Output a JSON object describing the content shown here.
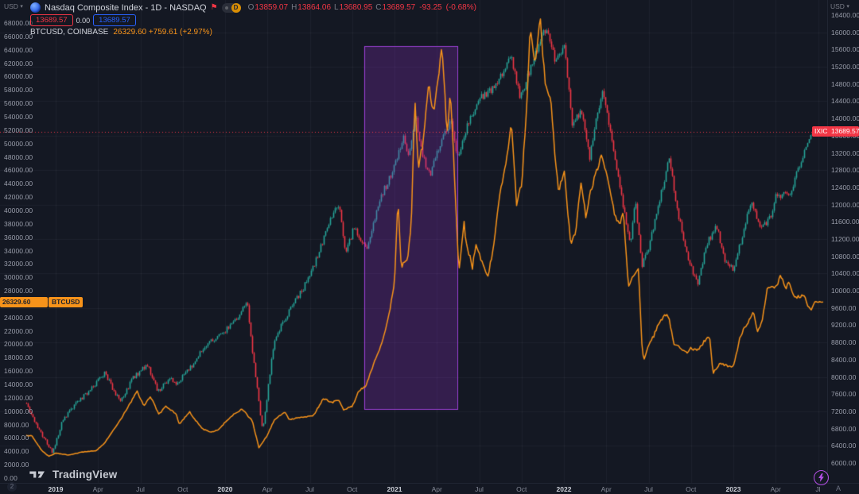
{
  "header": {
    "left_currency": "USD",
    "right_currency": "USD",
    "symbol_title": "Nasdaq Composite Index - 1D - NASDAQ",
    "interval_badge": "D",
    "ohlc": {
      "o_label": "O",
      "o": "13859.07",
      "h_label": "H",
      "h": "13864.06",
      "l_label": "L",
      "l": "13680.95",
      "c_label": "C",
      "c": "13689.57",
      "change": "-93.25",
      "change_pct": "(-0.68%)"
    },
    "sell_price": "13689.57",
    "spread": "0.00",
    "buy_price": "13689.57",
    "overlay_symbol": "BTCUSD, COINBASE",
    "overlay_values": "26329.60 +759.61 (+2.97%)"
  },
  "price_tags": {
    "btc_price": "26329.60",
    "btc_badge": "BTCUSD",
    "ixic_badge": "IXIC",
    "ixic_price": "13689.57"
  },
  "watermark_text": "TradingView",
  "bottom": {
    "left_badge": "2",
    "last_time_label": "Jl",
    "auto_label": "A"
  },
  "colors": {
    "background": "#141823",
    "up": "#26a69a",
    "down": "#f23645",
    "btc_orange": "#f7931a",
    "buy_blue": "#2962ff",
    "highlight_fill": "rgba(146,52,200,0.26)",
    "highlight_border": "#9b3fd4",
    "grid": "rgba(197,203,224,0.055)"
  },
  "chart_data": {
    "type": "line+candlestick",
    "title": "Nasdaq Composite Index vs BTCUSD",
    "x_axis": {
      "start": 2018.82,
      "end": 2023.56,
      "labels": [
        {
          "t": 2019.0,
          "text": "2019",
          "major": true
        },
        {
          "t": 2019.25,
          "text": "Apr",
          "major": false
        },
        {
          "t": 2019.5,
          "text": "Jul",
          "major": false
        },
        {
          "t": 2019.75,
          "text": "Oct",
          "major": false
        },
        {
          "t": 2020.0,
          "text": "2020",
          "major": true
        },
        {
          "t": 2020.25,
          "text": "Apr",
          "major": false
        },
        {
          "t": 2020.5,
          "text": "Jul",
          "major": false
        },
        {
          "t": 2020.75,
          "text": "Oct",
          "major": false
        },
        {
          "t": 2021.0,
          "text": "2021",
          "major": true
        },
        {
          "t": 2021.25,
          "text": "Apr",
          "major": false
        },
        {
          "t": 2021.5,
          "text": "Jul",
          "major": false
        },
        {
          "t": 2021.75,
          "text": "Oct",
          "major": false
        },
        {
          "t": 2022.0,
          "text": "2022",
          "major": true
        },
        {
          "t": 2022.25,
          "text": "Apr",
          "major": false
        },
        {
          "t": 2022.5,
          "text": "Jul",
          "major": false
        },
        {
          "t": 2022.75,
          "text": "Oct",
          "major": false
        },
        {
          "t": 2023.0,
          "text": "2023",
          "major": true
        },
        {
          "t": 2023.25,
          "text": "Apr",
          "major": false
        },
        {
          "t": 2023.5,
          "text": "Jl",
          "major": false
        }
      ]
    },
    "left_axis": {
      "tick_max": 68000,
      "tick_min": 0,
      "tick_step": 2000,
      "unit": "USD"
    },
    "right_axis": {
      "tick_max": 16400,
      "tick_min": 6000,
      "tick_step": 400,
      "unit": "USD"
    },
    "grid_h": {
      "from": 16000,
      "to": 6400,
      "step": 800,
      "axis": "right"
    },
    "price_line": {
      "value": 13689.57,
      "axis": "right"
    },
    "highlight_box": {
      "t_start": 2020.82,
      "t_end": 2021.37,
      "value_low": 10300,
      "value_high": 64500,
      "axis": "left"
    },
    "series": [
      {
        "name": "IXIC",
        "type": "candlestick",
        "axis": "right",
        "last_value": 13689.57,
        "anchors": [
          [
            2018.82,
            7480
          ],
          [
            2018.86,
            7050
          ],
          [
            2018.92,
            6650
          ],
          [
            2018.98,
            6250
          ],
          [
            2019.04,
            7000
          ],
          [
            2019.12,
            7400
          ],
          [
            2019.21,
            7730
          ],
          [
            2019.29,
            8095
          ],
          [
            2019.35,
            7600
          ],
          [
            2019.38,
            7450
          ],
          [
            2019.46,
            8000
          ],
          [
            2019.54,
            8280
          ],
          [
            2019.6,
            7660
          ],
          [
            2019.67,
            7960
          ],
          [
            2019.71,
            7830
          ],
          [
            2019.79,
            8200
          ],
          [
            2019.87,
            8665
          ],
          [
            2019.96,
            8972
          ],
          [
            2020.04,
            9200
          ],
          [
            2020.13,
            9750
          ],
          [
            2020.16,
            8567
          ],
          [
            2020.22,
            6700
          ],
          [
            2020.25,
            7700
          ],
          [
            2020.29,
            8890
          ],
          [
            2020.37,
            9490
          ],
          [
            2020.46,
            10060
          ],
          [
            2020.54,
            10745
          ],
          [
            2020.63,
            11775
          ],
          [
            2020.67,
            12000
          ],
          [
            2020.71,
            10850
          ],
          [
            2020.76,
            11500
          ],
          [
            2020.83,
            10950
          ],
          [
            2020.92,
            12200
          ],
          [
            2021.0,
            12888
          ],
          [
            2021.05,
            13600
          ],
          [
            2021.08,
            13070
          ],
          [
            2021.12,
            14095
          ],
          [
            2021.16,
            13200
          ],
          [
            2021.21,
            12650
          ],
          [
            2021.25,
            13250
          ],
          [
            2021.33,
            13960
          ],
          [
            2021.37,
            13100
          ],
          [
            2021.42,
            13750
          ],
          [
            2021.5,
            14500
          ],
          [
            2021.58,
            14680
          ],
          [
            2021.66,
            15260
          ],
          [
            2021.69,
            15400
          ],
          [
            2021.74,
            14450
          ],
          [
            2021.83,
            15500
          ],
          [
            2021.89,
            16100
          ],
          [
            2021.95,
            15300
          ],
          [
            2022.0,
            15650
          ],
          [
            2022.05,
            13800
          ],
          [
            2022.1,
            14240
          ],
          [
            2022.15,
            13100
          ],
          [
            2022.18,
            13750
          ],
          [
            2022.22,
            14620
          ],
          [
            2022.25,
            14220
          ],
          [
            2022.33,
            12340
          ],
          [
            2022.39,
            11100
          ],
          [
            2022.42,
            12080
          ],
          [
            2022.46,
            10600
          ],
          [
            2022.5,
            11030
          ],
          [
            2022.58,
            12390
          ],
          [
            2022.62,
            13100
          ],
          [
            2022.67,
            11820
          ],
          [
            2022.74,
            10600
          ],
          [
            2022.79,
            10200
          ],
          [
            2022.84,
            11100
          ],
          [
            2022.9,
            11480
          ],
          [
            2022.95,
            10700
          ],
          [
            2023.0,
            10470
          ],
          [
            2023.07,
            11600
          ],
          [
            2023.11,
            12050
          ],
          [
            2023.16,
            11460
          ],
          [
            2023.22,
            11700
          ],
          [
            2023.25,
            12220
          ],
          [
            2023.33,
            12230
          ],
          [
            2023.37,
            12700
          ],
          [
            2023.42,
            13240
          ],
          [
            2023.45,
            13590
          ],
          [
            2023.48,
            13689.57
          ]
        ]
      },
      {
        "name": "BTCUSD",
        "type": "line",
        "axis": "left",
        "last_value": 26329.6,
        "anchors": [
          [
            2018.82,
            6400
          ],
          [
            2018.86,
            6350
          ],
          [
            2018.88,
            5500
          ],
          [
            2018.92,
            4050
          ],
          [
            2018.96,
            3250
          ],
          [
            2019.0,
            3740
          ],
          [
            2019.08,
            3460
          ],
          [
            2019.16,
            3900
          ],
          [
            2019.24,
            4100
          ],
          [
            2019.29,
            5300
          ],
          [
            2019.37,
            8200
          ],
          [
            2019.44,
            11200
          ],
          [
            2019.48,
            13000
          ],
          [
            2019.52,
            10800
          ],
          [
            2019.56,
            12200
          ],
          [
            2019.61,
            9500
          ],
          [
            2019.65,
            10800
          ],
          [
            2019.71,
            9600
          ],
          [
            2019.73,
            8100
          ],
          [
            2019.79,
            9900
          ],
          [
            2019.83,
            8500
          ],
          [
            2019.87,
            7300
          ],
          [
            2019.92,
            6900
          ],
          [
            2019.96,
            7250
          ],
          [
            2020.04,
            9350
          ],
          [
            2020.1,
            10300
          ],
          [
            2020.16,
            8600
          ],
          [
            2020.2,
            4500
          ],
          [
            2020.25,
            6440
          ],
          [
            2020.29,
            8650
          ],
          [
            2020.35,
            9900
          ],
          [
            2020.38,
            8750
          ],
          [
            2020.46,
            9150
          ],
          [
            2020.52,
            9300
          ],
          [
            2020.58,
            11900
          ],
          [
            2020.63,
            11300
          ],
          [
            2020.67,
            11650
          ],
          [
            2020.7,
            10200
          ],
          [
            2020.75,
            10700
          ],
          [
            2020.79,
            13050
          ],
          [
            2020.83,
            13800
          ],
          [
            2020.89,
            18000
          ],
          [
            2020.92,
            19700
          ],
          [
            2020.96,
            23500
          ],
          [
            2021.0,
            29000
          ],
          [
            2021.02,
            41950
          ],
          [
            2021.04,
            31500
          ],
          [
            2021.08,
            33100
          ],
          [
            2021.1,
            38500
          ],
          [
            2021.12,
            57500
          ],
          [
            2021.14,
            46000
          ],
          [
            2021.17,
            50500
          ],
          [
            2021.2,
            59000
          ],
          [
            2021.23,
            54500
          ],
          [
            2021.26,
            59800
          ],
          [
            2021.28,
            64800
          ],
          [
            2021.31,
            51500
          ],
          [
            2021.33,
            57700
          ],
          [
            2021.36,
            42000
          ],
          [
            2021.38,
            30500
          ],
          [
            2021.41,
            38500
          ],
          [
            2021.42,
            35600
          ],
          [
            2021.46,
            31500
          ],
          [
            2021.48,
            35000
          ],
          [
            2021.5,
            33500
          ],
          [
            2021.54,
            30500
          ],
          [
            2021.55,
            29800
          ],
          [
            2021.58,
            34000
          ],
          [
            2021.62,
            42000
          ],
          [
            2021.66,
            47100
          ],
          [
            2021.69,
            52700
          ],
          [
            2021.72,
            41000
          ],
          [
            2021.75,
            43800
          ],
          [
            2021.78,
            55000
          ],
          [
            2021.8,
            66900
          ],
          [
            2021.83,
            61300
          ],
          [
            2021.86,
            68990
          ],
          [
            2021.89,
            58500
          ],
          [
            2021.92,
            57000
          ],
          [
            2021.95,
            47500
          ],
          [
            2021.97,
            42500
          ],
          [
            2022.0,
            46200
          ],
          [
            2022.04,
            35000
          ],
          [
            2022.07,
            36500
          ],
          [
            2022.1,
            44200
          ],
          [
            2022.13,
            39000
          ],
          [
            2022.16,
            43100
          ],
          [
            2022.22,
            48100
          ],
          [
            2022.25,
            45500
          ],
          [
            2022.3,
            39500
          ],
          [
            2022.33,
            37700
          ],
          [
            2022.35,
            40000
          ],
          [
            2022.38,
            28500
          ],
          [
            2022.41,
            30100
          ],
          [
            2022.44,
            31300
          ],
          [
            2022.46,
            20000
          ],
          [
            2022.47,
            17600
          ],
          [
            2022.5,
            19900
          ],
          [
            2022.53,
            21200
          ],
          [
            2022.56,
            23300
          ],
          [
            2022.6,
            24400
          ],
          [
            2022.62,
            23900
          ],
          [
            2022.65,
            20100
          ],
          [
            2022.69,
            19500
          ],
          [
            2022.73,
            18600
          ],
          [
            2022.75,
            19400
          ],
          [
            2022.79,
            19100
          ],
          [
            2022.83,
            20500
          ],
          [
            2022.86,
            21300
          ],
          [
            2022.88,
            15700
          ],
          [
            2022.92,
            17150
          ],
          [
            2022.96,
            16800
          ],
          [
            2023.0,
            16550
          ],
          [
            2023.04,
            21100
          ],
          [
            2023.08,
            23100
          ],
          [
            2023.12,
            24700
          ],
          [
            2023.14,
            21900
          ],
          [
            2023.17,
            23500
          ],
          [
            2023.2,
            28300
          ],
          [
            2023.25,
            28400
          ],
          [
            2023.28,
            30300
          ],
          [
            2023.31,
            28500
          ],
          [
            2023.33,
            29250
          ],
          [
            2023.36,
            26800
          ],
          [
            2023.4,
            27300
          ],
          [
            2023.42,
            27200
          ],
          [
            2023.44,
            25800
          ],
          [
            2023.46,
            25100
          ],
          [
            2023.48,
            26329.6
          ]
        ]
      }
    ]
  }
}
